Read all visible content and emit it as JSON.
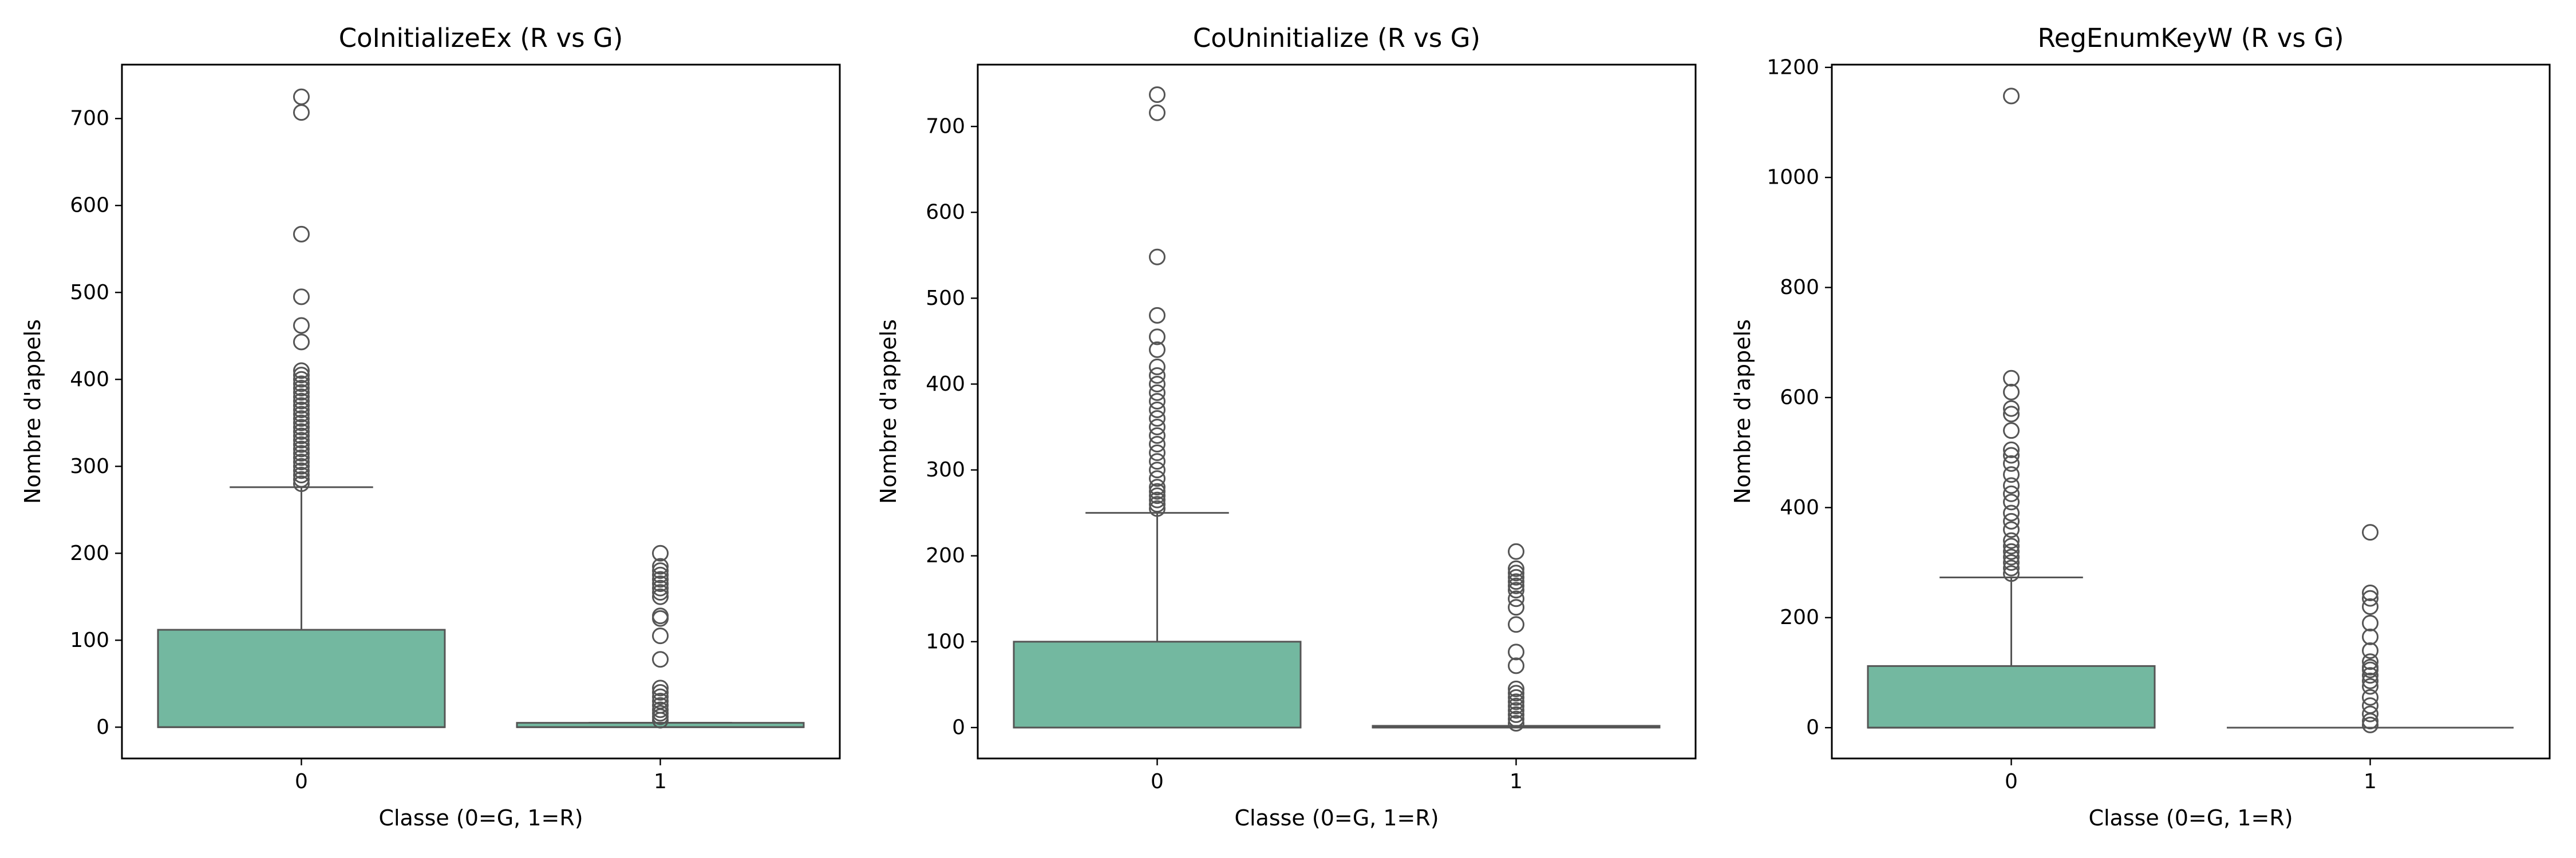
{
  "colors": {
    "box_fill": "#73b8a0",
    "line": "#555555",
    "axis": "#000000"
  },
  "chart_data": [
    {
      "type": "box",
      "title": "CoInitializeEx (R vs G)",
      "xlabel": "Classe (0=G, 1=R)",
      "ylabel": "Nombre d'appels",
      "categories": [
        "0",
        "1"
      ],
      "ylim": [
        -36,
        762
      ],
      "yticks": [
        0,
        100,
        200,
        300,
        400,
        500,
        600,
        700
      ],
      "grid": false,
      "boxes": [
        {
          "category": "0",
          "whislo": 0,
          "q1": 0,
          "med": 0,
          "q3": 112,
          "whishi": 276,
          "fliers": [
            280,
            285,
            290,
            295,
            300,
            305,
            310,
            315,
            320,
            325,
            330,
            335,
            340,
            345,
            350,
            355,
            360,
            365,
            370,
            375,
            380,
            385,
            390,
            395,
            400,
            405,
            410,
            443,
            462,
            495,
            567,
            707,
            725
          ]
        },
        {
          "category": "1",
          "whislo": 0,
          "q1": 0,
          "med": 0,
          "q3": 5,
          "whishi": 5,
          "fliers": [
            8,
            12,
            16,
            20,
            25,
            30,
            35,
            40,
            45,
            78,
            105,
            125,
            128,
            150,
            155,
            160,
            165,
            170,
            175,
            180,
            185,
            200
          ]
        }
      ]
    },
    {
      "type": "box",
      "title": "CoUninitialize (R vs G)",
      "xlabel": "Classe (0=G, 1=R)",
      "ylabel": "Nombre d'appels",
      "categories": [
        "0",
        "1"
      ],
      "ylim": [
        -36,
        772
      ],
      "yticks": [
        0,
        100,
        200,
        300,
        400,
        500,
        600,
        700
      ],
      "grid": false,
      "boxes": [
        {
          "category": "0",
          "whislo": 0,
          "q1": 0,
          "med": 0,
          "q3": 100,
          "whishi": 250,
          "fliers": [
            255,
            260,
            265,
            270,
            275,
            280,
            290,
            300,
            310,
            320,
            330,
            340,
            350,
            360,
            370,
            380,
            390,
            400,
            410,
            420,
            440,
            455,
            480,
            548,
            716,
            737
          ]
        },
        {
          "category": "1",
          "whislo": 0,
          "q1": 0,
          "med": 0,
          "q3": 2,
          "whishi": 2,
          "fliers": [
            5,
            10,
            15,
            20,
            25,
            30,
            35,
            40,
            45,
            72,
            88,
            120,
            140,
            150,
            160,
            165,
            170,
            175,
            180,
            185,
            205
          ]
        }
      ]
    },
    {
      "type": "box",
      "title": "RegEnumKeyW (R vs G)",
      "xlabel": "Classe (0=G, 1=R)",
      "ylabel": "Nombre d'appels",
      "categories": [
        "0",
        "1"
      ],
      "ylim": [
        -56,
        1205
      ],
      "yticks": [
        0,
        200,
        400,
        600,
        800,
        1000,
        1200
      ],
      "grid": false,
      "boxes": [
        {
          "category": "0",
          "whislo": 0,
          "q1": 0,
          "med": 0,
          "q3": 112,
          "whishi": 273,
          "fliers": [
            280,
            290,
            300,
            310,
            320,
            330,
            340,
            360,
            375,
            390,
            410,
            425,
            440,
            460,
            480,
            495,
            505,
            540,
            570,
            580,
            610,
            635,
            1148
          ]
        },
        {
          "category": "1",
          "whislo": 0,
          "q1": 0,
          "med": 0,
          "q3": 0,
          "whishi": 0,
          "fliers": [
            5,
            12,
            25,
            40,
            55,
            75,
            85,
            95,
            105,
            110,
            120,
            140,
            165,
            190,
            220,
            235,
            245,
            355
          ]
        }
      ]
    }
  ]
}
